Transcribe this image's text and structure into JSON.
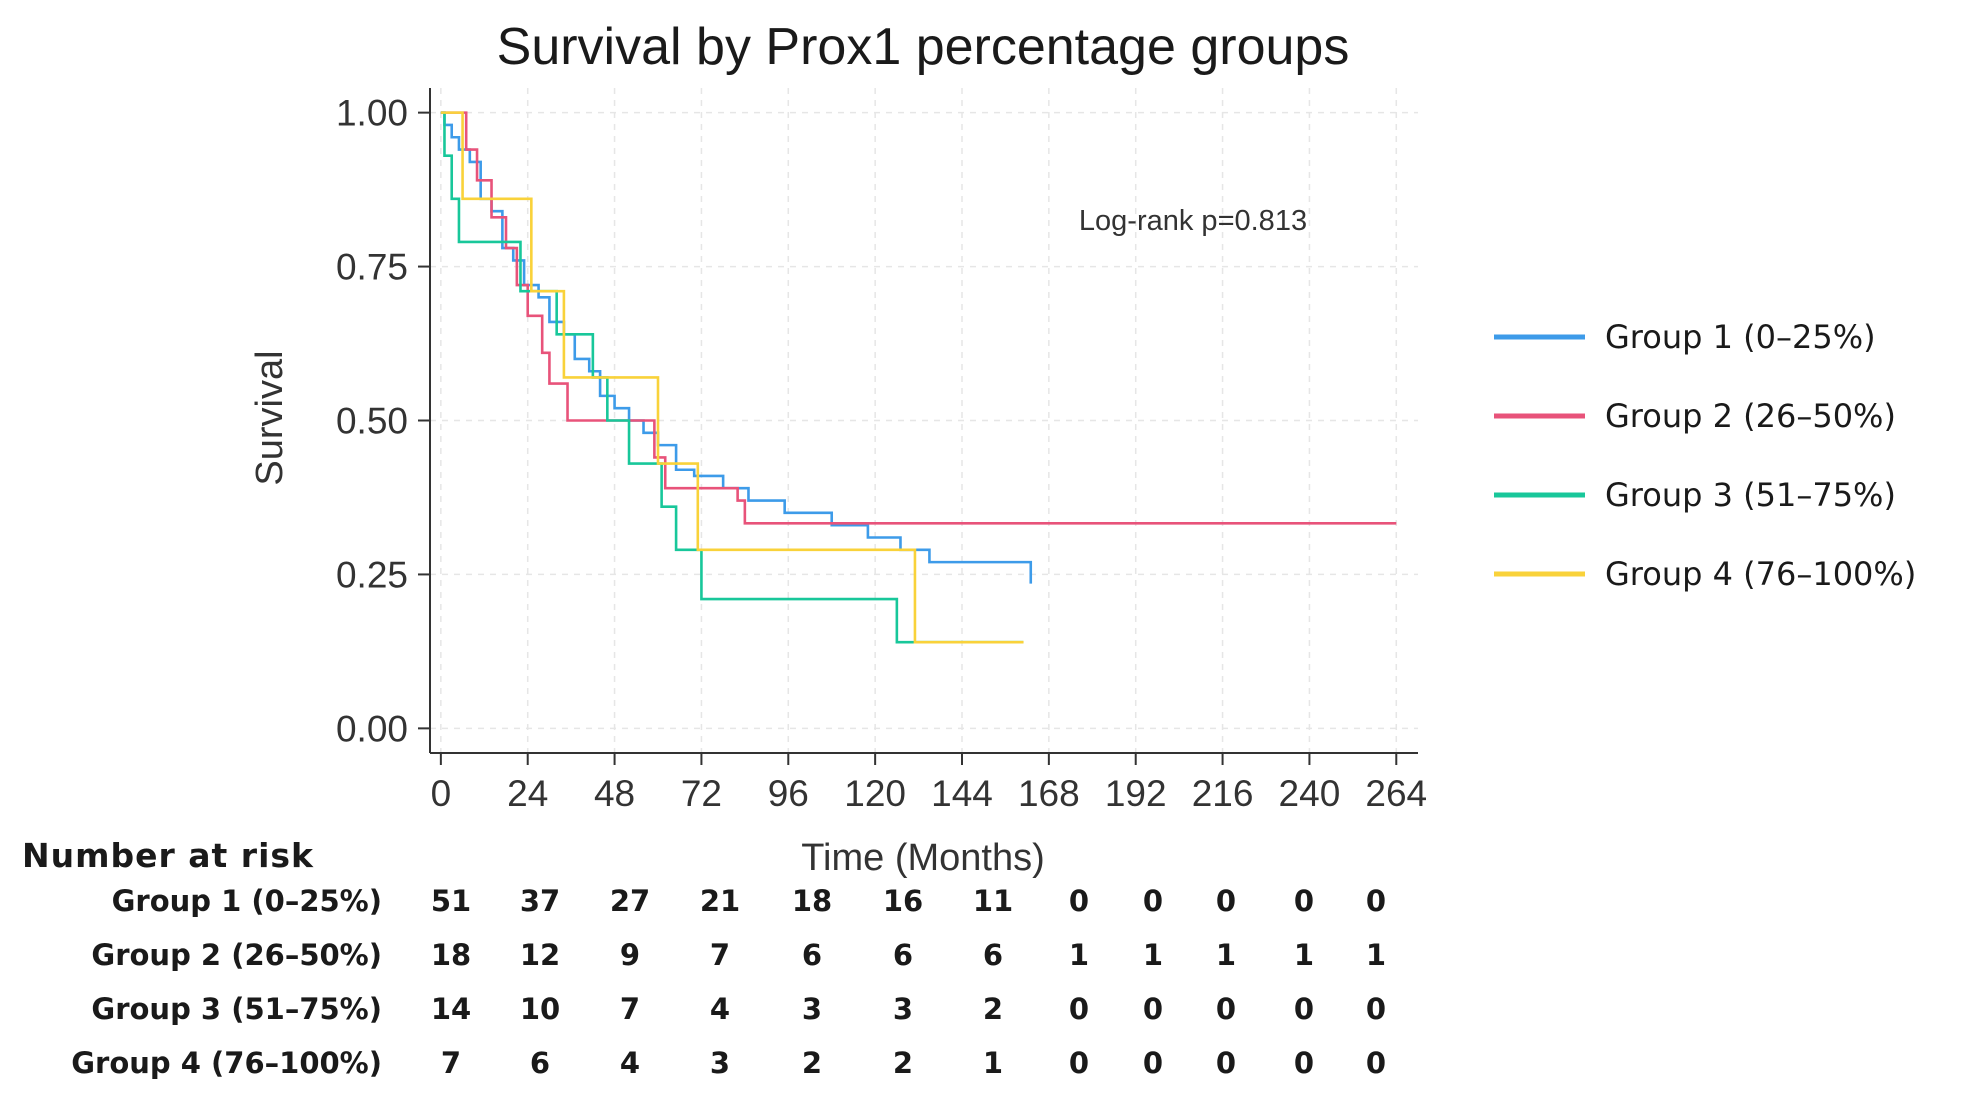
{
  "chart_data": {
    "type": "line",
    "step": true,
    "title": "Survival by Prox1 percentage groups",
    "xlabel": "Time (Months)",
    "ylabel": "Survival",
    "xlim": [
      -3,
      270
    ],
    "ylim": [
      -0.04,
      1.04
    ],
    "xticks": [
      0,
      24,
      48,
      72,
      96,
      120,
      144,
      168,
      192,
      216,
      240,
      264
    ],
    "yticks": [
      0.0,
      0.25,
      0.5,
      0.75,
      1.0
    ],
    "ytick_labels": [
      "0.00",
      "0.25",
      "0.50",
      "0.75",
      "1.00"
    ],
    "grid": true,
    "annotation": "Log-rank p=0.813",
    "legend_position": "right",
    "series": [
      {
        "name": "Group 1 (0–25%)",
        "color": "#3d9be9",
        "x": [
          0,
          1,
          3,
          5,
          8,
          11,
          14,
          17,
          20,
          23,
          27,
          30,
          34,
          37,
          41,
          44,
          48,
          52,
          56,
          60,
          65,
          70,
          78,
          85,
          95,
          108,
          118,
          127,
          135,
          163
        ],
        "y": [
          1.0,
          0.98,
          0.96,
          0.94,
          0.92,
          0.86,
          0.84,
          0.78,
          0.76,
          0.72,
          0.7,
          0.66,
          0.64,
          0.6,
          0.58,
          0.54,
          0.52,
          0.5,
          0.48,
          0.46,
          0.42,
          0.41,
          0.39,
          0.37,
          0.35,
          0.33,
          0.31,
          0.29,
          0.27,
          0.235
        ]
      },
      {
        "name": "Group 2 (26–50%)",
        "color": "#e8537a",
        "x": [
          0,
          7,
          10,
          14,
          18,
          21,
          24,
          28,
          30,
          35,
          38,
          43,
          47,
          55,
          59,
          62,
          72,
          76,
          82,
          84,
          264
        ],
        "y": [
          1.0,
          0.94,
          0.89,
          0.83,
          0.78,
          0.72,
          0.67,
          0.61,
          0.56,
          0.5,
          0.5,
          0.5,
          0.5,
          0.5,
          0.44,
          0.39,
          0.39,
          0.39,
          0.37,
          0.333,
          0.333
        ]
      },
      {
        "name": "Group 3 (51–75%)",
        "color": "#18c79a",
        "x": [
          0,
          1,
          3,
          5,
          18,
          22,
          27,
          32,
          37,
          42,
          46,
          52,
          57,
          61,
          65,
          72,
          84,
          120,
          126,
          130,
          161
        ],
        "y": [
          1.0,
          0.93,
          0.86,
          0.79,
          0.79,
          0.71,
          0.71,
          0.64,
          0.64,
          0.57,
          0.5,
          0.43,
          0.43,
          0.36,
          0.29,
          0.21,
          0.21,
          0.21,
          0.14,
          0.14,
          0.14
        ]
      },
      {
        "name": "Group 4 (76–100%)",
        "color": "#f9d23a",
        "x": [
          0,
          6,
          12,
          25,
          30,
          34,
          40,
          47,
          55,
          60,
          63,
          71,
          78,
          96,
          113,
          125,
          131,
          161
        ],
        "y": [
          1.0,
          0.86,
          0.86,
          0.71,
          0.71,
          0.57,
          0.57,
          0.57,
          0.57,
          0.43,
          0.43,
          0.29,
          0.29,
          0.29,
          0.29,
          0.29,
          0.14,
          0.14
        ]
      }
    ],
    "risk_table": {
      "title": "Number at risk",
      "times": [
        0,
        24,
        48,
        72,
        96,
        120,
        144,
        168,
        192,
        216,
        240,
        264
      ],
      "rows": [
        {
          "label": "Group 1 (0–25%)",
          "values": [
            51,
            37,
            27,
            21,
            18,
            16,
            11,
            0,
            0,
            0,
            0,
            0
          ]
        },
        {
          "label": "Group 2 (26–50%)",
          "values": [
            18,
            12,
            9,
            7,
            6,
            6,
            6,
            1,
            1,
            1,
            1,
            1
          ]
        },
        {
          "label": "Group 3 (51–75%)",
          "values": [
            14,
            10,
            7,
            4,
            3,
            3,
            2,
            0,
            0,
            0,
            0,
            0
          ]
        },
        {
          "label": "Group 4 (76–100%)",
          "values": [
            7,
            6,
            4,
            3,
            2,
            2,
            1,
            0,
            0,
            0,
            0,
            0
          ]
        }
      ]
    }
  }
}
